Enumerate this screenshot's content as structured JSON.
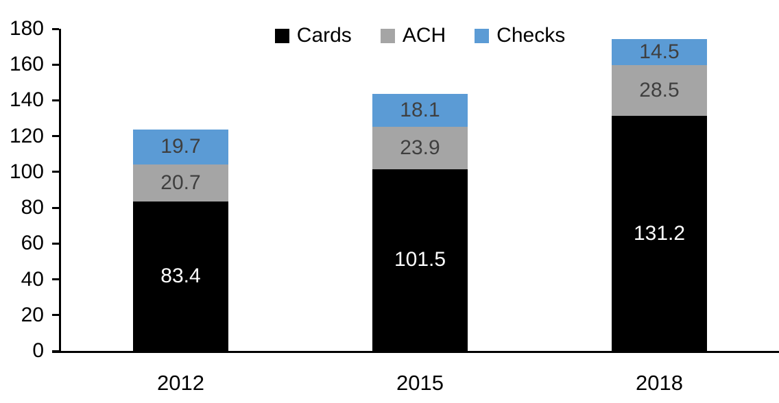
{
  "chart_data": {
    "type": "bar",
    "stacked": true,
    "title": "",
    "xlabel": "",
    "ylabel": "",
    "categories": [
      "2012",
      "2015",
      "2018"
    ],
    "series": [
      {
        "name": "Cards",
        "color": "#000000",
        "label_color": "#FFFFFF",
        "values": [
          83.4,
          101.5,
          131.2
        ]
      },
      {
        "name": "ACH",
        "color": "#A5A5A5",
        "label_color": "#3F3F3F",
        "values": [
          20.7,
          23.9,
          28.5
        ]
      },
      {
        "name": "Checks",
        "color": "#5B9BD5",
        "label_color": "#3F3F3F",
        "values": [
          19.7,
          18.1,
          14.5
        ]
      }
    ],
    "ylim": [
      0,
      180
    ],
    "yticks": [
      0,
      20,
      40,
      60,
      80,
      100,
      120,
      140,
      160,
      180
    ],
    "grid": false,
    "legend_position": "top-center",
    "data_labels": "center",
    "axis_color": "#000000"
  }
}
